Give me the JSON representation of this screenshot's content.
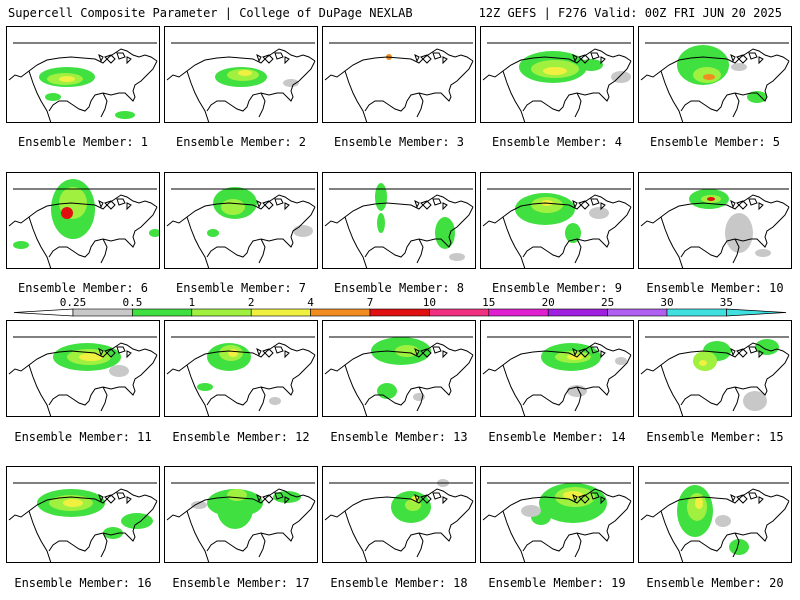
{
  "header": {
    "title": "Supercell Composite Parameter | College of DuPage NEXLAB",
    "run_info": "12Z GEFS | F276 Valid: 00Z FRI JUN 20 2025"
  },
  "colorbar": {
    "ticks": [
      "0.25",
      "0.5",
      "1",
      "2",
      "4",
      "7",
      "10",
      "15",
      "20",
      "25",
      "30",
      "35"
    ],
    "colors": [
      "#c8c8c8",
      "#40e040",
      "#a0f040",
      "#f0f040",
      "#f08c20",
      "#e01010",
      "#f03080",
      "#e020d0",
      "#a020e0",
      "#b060f0",
      "#40e0e0"
    ],
    "under_color": "#ffffff",
    "over_color": "#40e0e0"
  },
  "members": [
    {
      "label": "Ensemble Member: 1"
    },
    {
      "label": "Ensemble Member: 2"
    },
    {
      "label": "Ensemble Member: 3"
    },
    {
      "label": "Ensemble Member: 4"
    },
    {
      "label": "Ensemble Member: 5"
    },
    {
      "label": "Ensemble Member: 6"
    },
    {
      "label": "Ensemble Member: 7"
    },
    {
      "label": "Ensemble Member: 8"
    },
    {
      "label": "Ensemble Member: 9"
    },
    {
      "label": "Ensemble Member: 10"
    },
    {
      "label": "Ensemble Member: 11"
    },
    {
      "label": "Ensemble Member: 12"
    },
    {
      "label": "Ensemble Member: 13"
    },
    {
      "label": "Ensemble Member: 14"
    },
    {
      "label": "Ensemble Member: 15"
    },
    {
      "label": "Ensemble Member: 16"
    },
    {
      "label": "Ensemble Member: 17"
    },
    {
      "label": "Ensemble Member: 18"
    },
    {
      "label": "Ensemble Member: 19"
    },
    {
      "label": "Ensemble Member: 20"
    }
  ]
}
